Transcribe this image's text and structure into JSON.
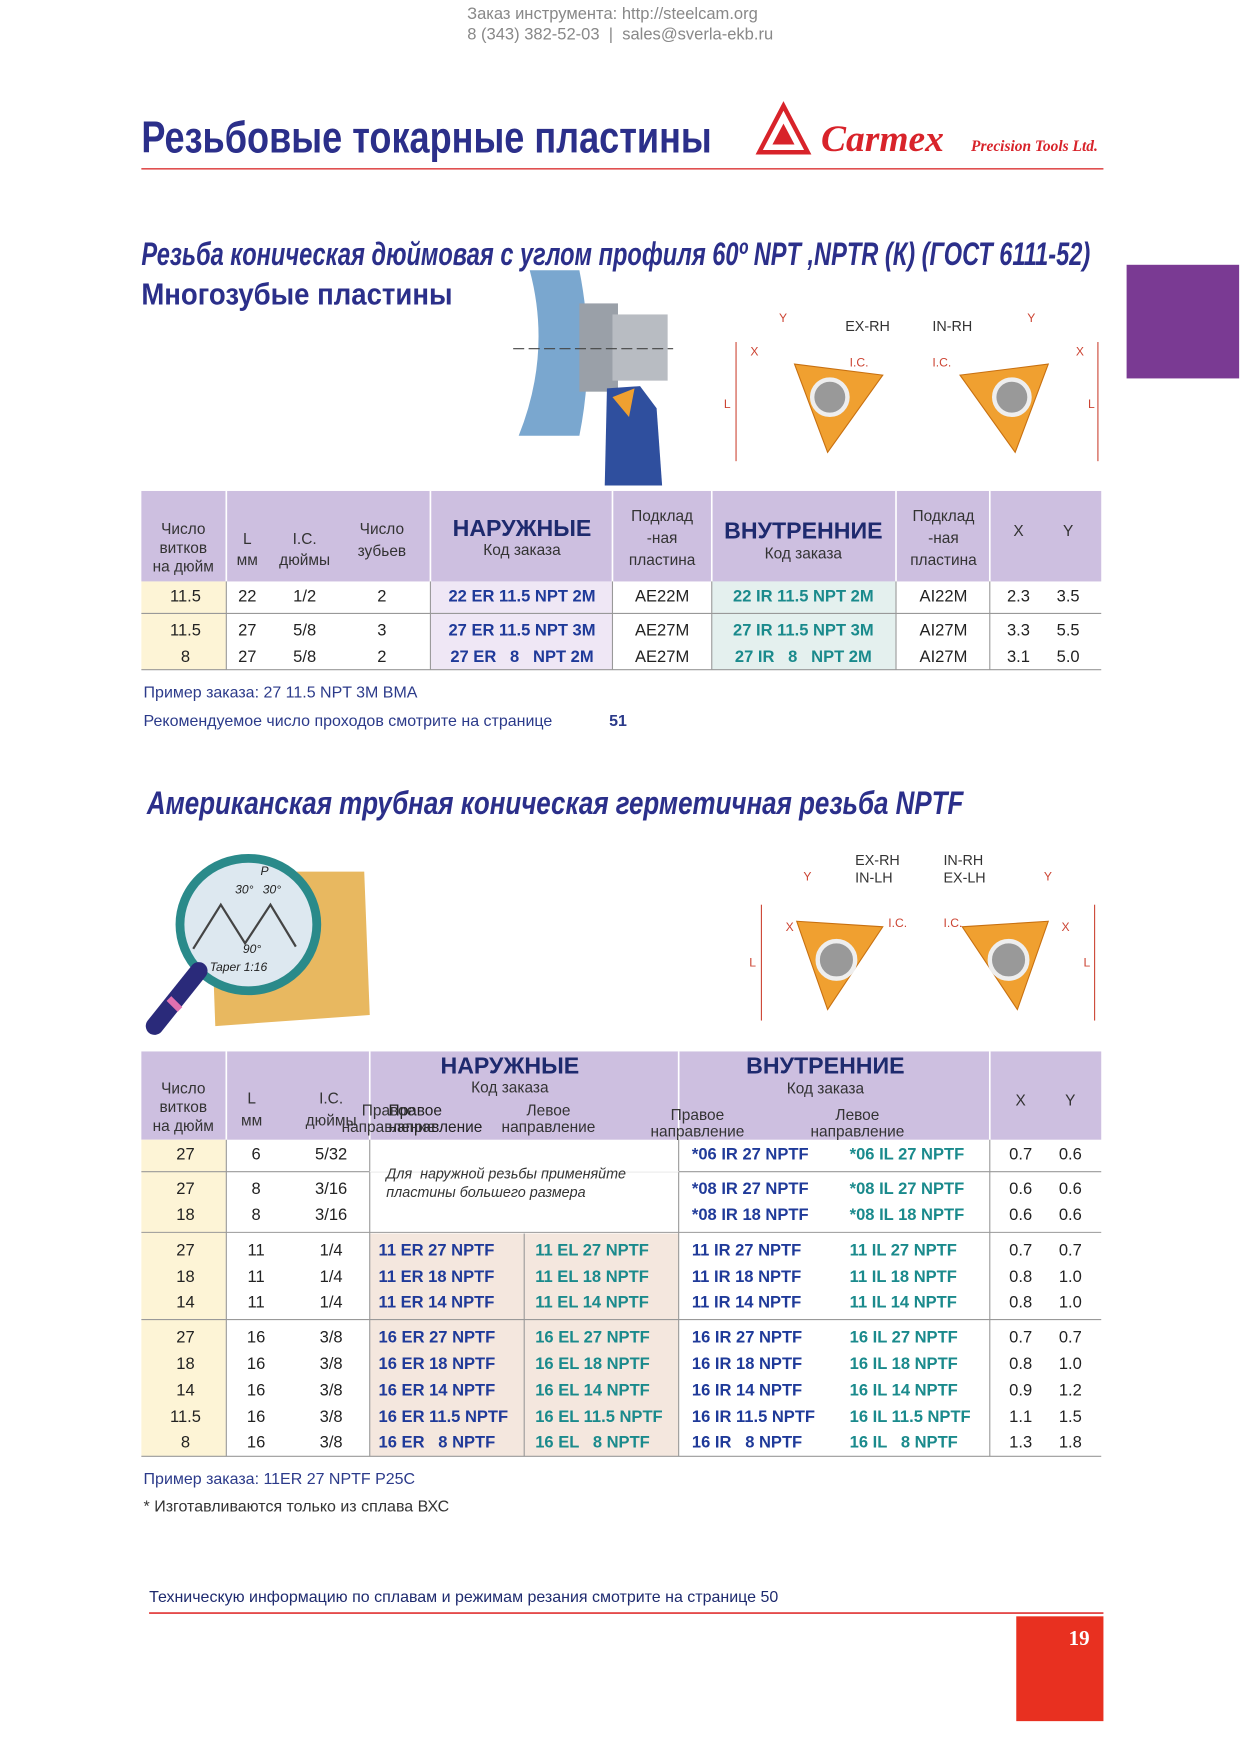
{
  "header": {
    "contact_line1": "Заказ инструмента: http://steelcam.org",
    "contact_line2": "8 (343) 382-52-03  |  sales@sverla-ekb.ru",
    "title": "Резьбовые токарные пластины",
    "brand": "Carmex",
    "brand_sub": "Precision Tools Ltd."
  },
  "section1": {
    "title": "Резьба коническая дюймовая с углом профиля 60º NPT ,NPTR (К) (ГОСТ 6111-52)",
    "subtitle": "Многозубые пластины",
    "diagram": {
      "ex": "EX-RH",
      "in": "IN-RH",
      "ic": "I.C.",
      "x": "X",
      "y": "Y",
      "l": "L"
    },
    "table": {
      "col_tpi": [
        "Число",
        "витков",
        "на дюйм"
      ],
      "col_l": [
        "L",
        "мм"
      ],
      "col_ic": [
        "I.C.",
        "дюймы"
      ],
      "col_teeth": [
        "Число",
        "зубьев"
      ],
      "ext_title": "НАРУЖНЫЕ",
      "ext_sub": "Код заказа",
      "shim": [
        "Подклад",
        "-ная",
        "пластина"
      ],
      "int_title": "ВНУТРЕННИЕ",
      "int_sub": "Код заказа",
      "col_x": "X",
      "col_y": "Y",
      "rows": [
        [
          "11.5",
          "22",
          "1/2",
          "2",
          "22 ER 11.5 NPT 2M",
          "AE22M",
          "22 IR 11.5 NPT 2M",
          "AI22M",
          "2.3",
          "3.5"
        ],
        [
          "11.5",
          "27",
          "5/8",
          "3",
          "27 ER 11.5 NPT 3M",
          "AE27M",
          "27 IR 11.5 NPT 3M",
          "AI27M",
          "3.3",
          "5.5"
        ],
        [
          "8",
          "27",
          "5/8",
          "2",
          "27 ER   8   NPT 2M",
          "AE27M",
          "27 IR   8   NPT 2M",
          "AI27M",
          "3.1",
          "5.0"
        ]
      ]
    },
    "note1": "Пример заказа: 27 11.5 NPT 3M BMA",
    "note2": "Рекомендуемое число проходов смотрите на странице",
    "note2_page": "51"
  },
  "section2": {
    "title": "Американская трубная коническая герметичная резьба NPTF",
    "diagram": {
      "p": "P",
      "angle": "30°",
      "right": "90°",
      "taper": "Taper 1:16",
      "left_label": [
        "EX-RH",
        "IN-LH"
      ],
      "right_label": [
        "IN-RH",
        "EX-LH"
      ],
      "ic": "I.C.",
      "x": "X",
      "y": "Y",
      "l": "L"
    },
    "table": {
      "col_tpi": [
        "Число",
        "витков",
        "на дюйм"
      ],
      "col_l": [
        "L",
        "мм"
      ],
      "col_ic": [
        "I.C.",
        "дюймы"
      ],
      "ext_title": "НАРУЖНЫЕ",
      "ext_sub": "Код заказа",
      "int_title": "ВНУТРЕННИЕ",
      "int_sub": "Код заказа",
      "right_dir": [
        "Правое",
        "направление"
      ],
      "left_dir": [
        "Левое",
        "направление"
      ],
      "col_x": "X",
      "col_y": "Y",
      "ext_note": [
        "Для  наружной резьбы применяйте",
        "пластины большего размера"
      ],
      "rows": [
        [
          "27",
          "6",
          "5/32",
          null,
          null,
          "*06 IR 27 NPTF",
          "*06 IL 27 NPTF",
          "0.7",
          "0.6"
        ],
        [
          "27",
          "8",
          "3/16",
          null,
          null,
          "*08 IR 27 NPTF",
          "*08 IL 27 NPTF",
          "0.6",
          "0.6"
        ],
        [
          "18",
          "8",
          "3/16",
          null,
          null,
          "*08 IR 18 NPTF",
          "*08 IL 18 NPTF",
          "0.6",
          "0.6"
        ],
        [
          "27",
          "11",
          "1/4",
          "11 ER 27 NPTF",
          "11 EL 27 NPTF",
          "11 IR 27 NPTF",
          "11 IL 27 NPTF",
          "0.7",
          "0.7"
        ],
        [
          "18",
          "11",
          "1/4",
          "11 ER 18 NPTF",
          "11 EL 18 NPTF",
          "11 IR 18 NPTF",
          "11 IL 18 NPTF",
          "0.8",
          "1.0"
        ],
        [
          "14",
          "11",
          "1/4",
          "11 ER 14 NPTF",
          "11 EL 14 NPTF",
          "11 IR 14 NPTF",
          "11 IL 14 NPTF",
          "0.8",
          "1.0"
        ],
        [
          "27",
          "16",
          "3/8",
          "16 ER 27 NPTF",
          "16 EL 27 NPTF",
          "16 IR 27 NPTF",
          "16 IL 27 NPTF",
          "0.7",
          "0.7"
        ],
        [
          "18",
          "16",
          "3/8",
          "16 ER 18 NPTF",
          "16 EL 18 NPTF",
          "16 IR 18 NPTF",
          "16 IL 18 NPTF",
          "0.8",
          "1.0"
        ],
        [
          "14",
          "16",
          "3/8",
          "16 ER 14 NPTF",
          "16 EL 14 NPTF",
          "16 IR 14 NPTF",
          "16 IL 14 NPTF",
          "0.9",
          "1.2"
        ],
        [
          "11.5",
          "16",
          "3/8",
          "16 ER 11.5 NPTF",
          "16 EL 11.5 NPTF",
          "16 IR 11.5 NPTF",
          "16 IL 11.5 NPTF",
          "1.1",
          "1.5"
        ],
        [
          "8",
          "16",
          "3/8",
          "16 ER   8 NPTF",
          "16 EL   8 NPTF",
          "16 IR   8 NPTF",
          "16 IL   8 NPTF",
          "1.3",
          "1.8"
        ]
      ]
    },
    "note1": "Пример заказа: 11ER 27 NPTF P25C",
    "note2": "* Изготавливаются только из сплава ВХС"
  },
  "footer": {
    "note": "Техническую информацию по сплавам и режимам резания смотрите на странице 50",
    "page": "19"
  }
}
